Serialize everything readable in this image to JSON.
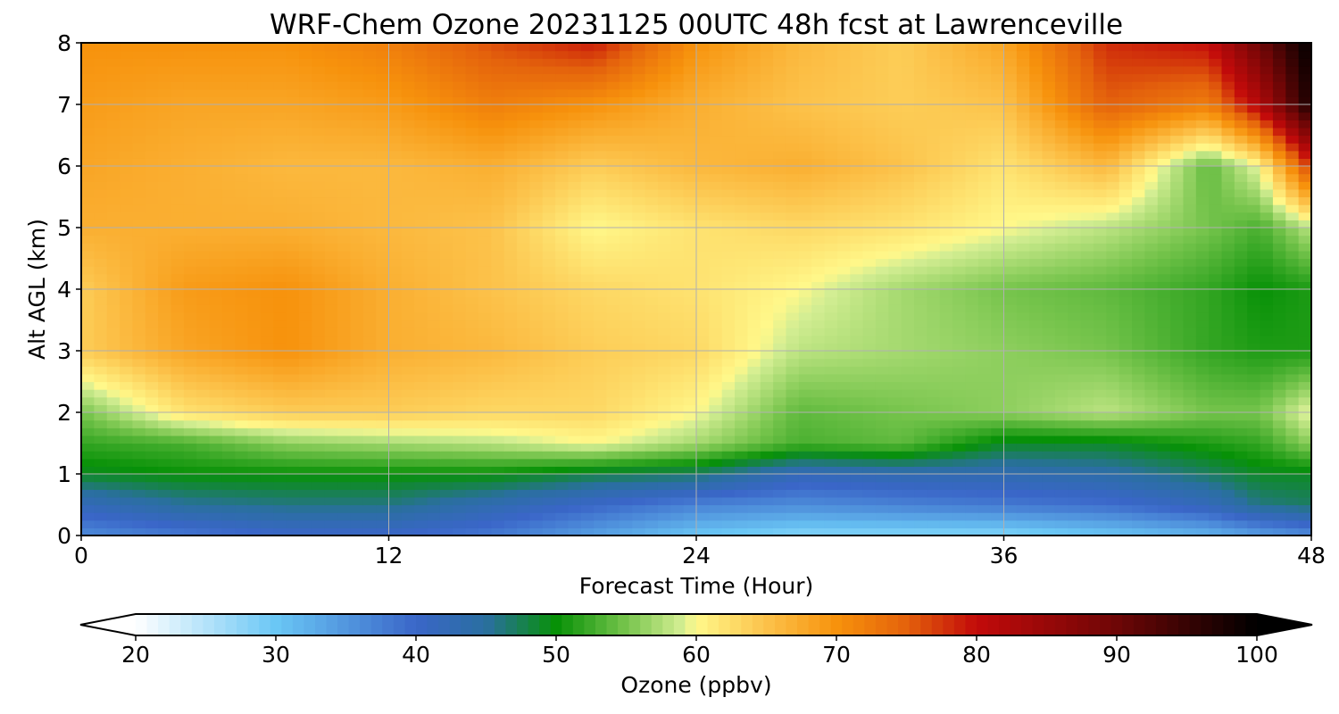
{
  "chart_data": {
    "type": "heatmap",
    "title": "WRF-Chem Ozone  20231125 00UTC 48h fcst at Lawrenceville",
    "xlabel": "Forecast Time (Hour)",
    "ylabel": "Alt AGL (km)",
    "xlim": [
      0,
      48
    ],
    "ylim": [
      0,
      8
    ],
    "x_ticks": [
      "0",
      "12",
      "24",
      "36",
      "48"
    ],
    "y_ticks": [
      "0",
      "1",
      "2",
      "3",
      "4",
      "5",
      "6",
      "7",
      "8"
    ],
    "grid": true,
    "hours": [
      0,
      4,
      8,
      12,
      16,
      20,
      24,
      28,
      32,
      36,
      40,
      44,
      46,
      48
    ],
    "altitudes_km": [
      0,
      0.5,
      1,
      1.5,
      2,
      3,
      4,
      5,
      6,
      7,
      8
    ],
    "values_ppbv": [
      [
        36,
        38,
        40,
        40,
        38,
        34,
        30,
        28,
        28,
        28,
        30,
        32,
        34,
        36
      ],
      [
        42,
        45,
        46,
        46,
        43,
        40,
        37,
        36,
        37,
        38,
        39,
        42,
        46,
        47
      ],
      [
        49,
        50,
        50,
        50,
        50,
        48,
        47,
        42,
        43,
        43,
        44,
        47,
        49,
        49
      ],
      [
        52,
        53,
        56,
        57,
        58,
        60,
        57,
        53,
        54,
        49,
        49,
        51,
        52,
        56
      ],
      [
        55,
        62,
        64,
        64,
        63,
        63,
        60,
        54,
        55,
        56,
        58,
        55,
        55,
        60
      ],
      [
        64,
        68,
        70,
        67,
        66,
        64,
        63,
        58,
        57,
        56,
        55,
        52,
        51,
        51
      ],
      [
        64,
        69,
        70,
        67,
        65,
        63,
        62,
        60,
        57,
        55,
        54,
        52,
        50,
        51
      ],
      [
        67,
        67,
        67,
        66,
        65,
        60,
        62,
        63,
        62,
        60,
        58,
        55,
        53,
        58
      ],
      [
        68,
        67,
        66,
        66,
        67,
        64,
        66,
        67,
        65,
        62,
        66,
        54,
        60,
        78
      ],
      [
        69,
        68,
        68,
        69,
        72,
        70,
        67,
        65,
        64,
        65,
        75,
        72,
        82,
        98
      ],
      [
        70,
        70,
        70,
        72,
        76,
        79,
        70,
        66,
        64,
        68,
        78,
        80,
        90,
        100
      ]
    ],
    "colorbar": {
      "label": "Ozone  (ppbv)",
      "min": 20,
      "max": 100,
      "extend": "both",
      "ticks": [
        "20",
        "30",
        "40",
        "50",
        "60",
        "70",
        "80",
        "90",
        "100"
      ],
      "stops": [
        {
          "value": 20,
          "color": "#ffffff"
        },
        {
          "value": 30,
          "color": "#6ac7f5"
        },
        {
          "value": 40,
          "color": "#3a66c8"
        },
        {
          "value": 45,
          "color": "#2a6fa0"
        },
        {
          "value": 50,
          "color": "#079107"
        },
        {
          "value": 55,
          "color": "#76c44c"
        },
        {
          "value": 59,
          "color": "#d4ee93"
        },
        {
          "value": 60,
          "color": "#fff88a"
        },
        {
          "value": 65,
          "color": "#fcc24a"
        },
        {
          "value": 70,
          "color": "#f7920c"
        },
        {
          "value": 75,
          "color": "#e4620c"
        },
        {
          "value": 80,
          "color": "#c20a0a"
        },
        {
          "value": 90,
          "color": "#6e0606"
        },
        {
          "value": 100,
          "color": "#000000"
        }
      ]
    }
  }
}
